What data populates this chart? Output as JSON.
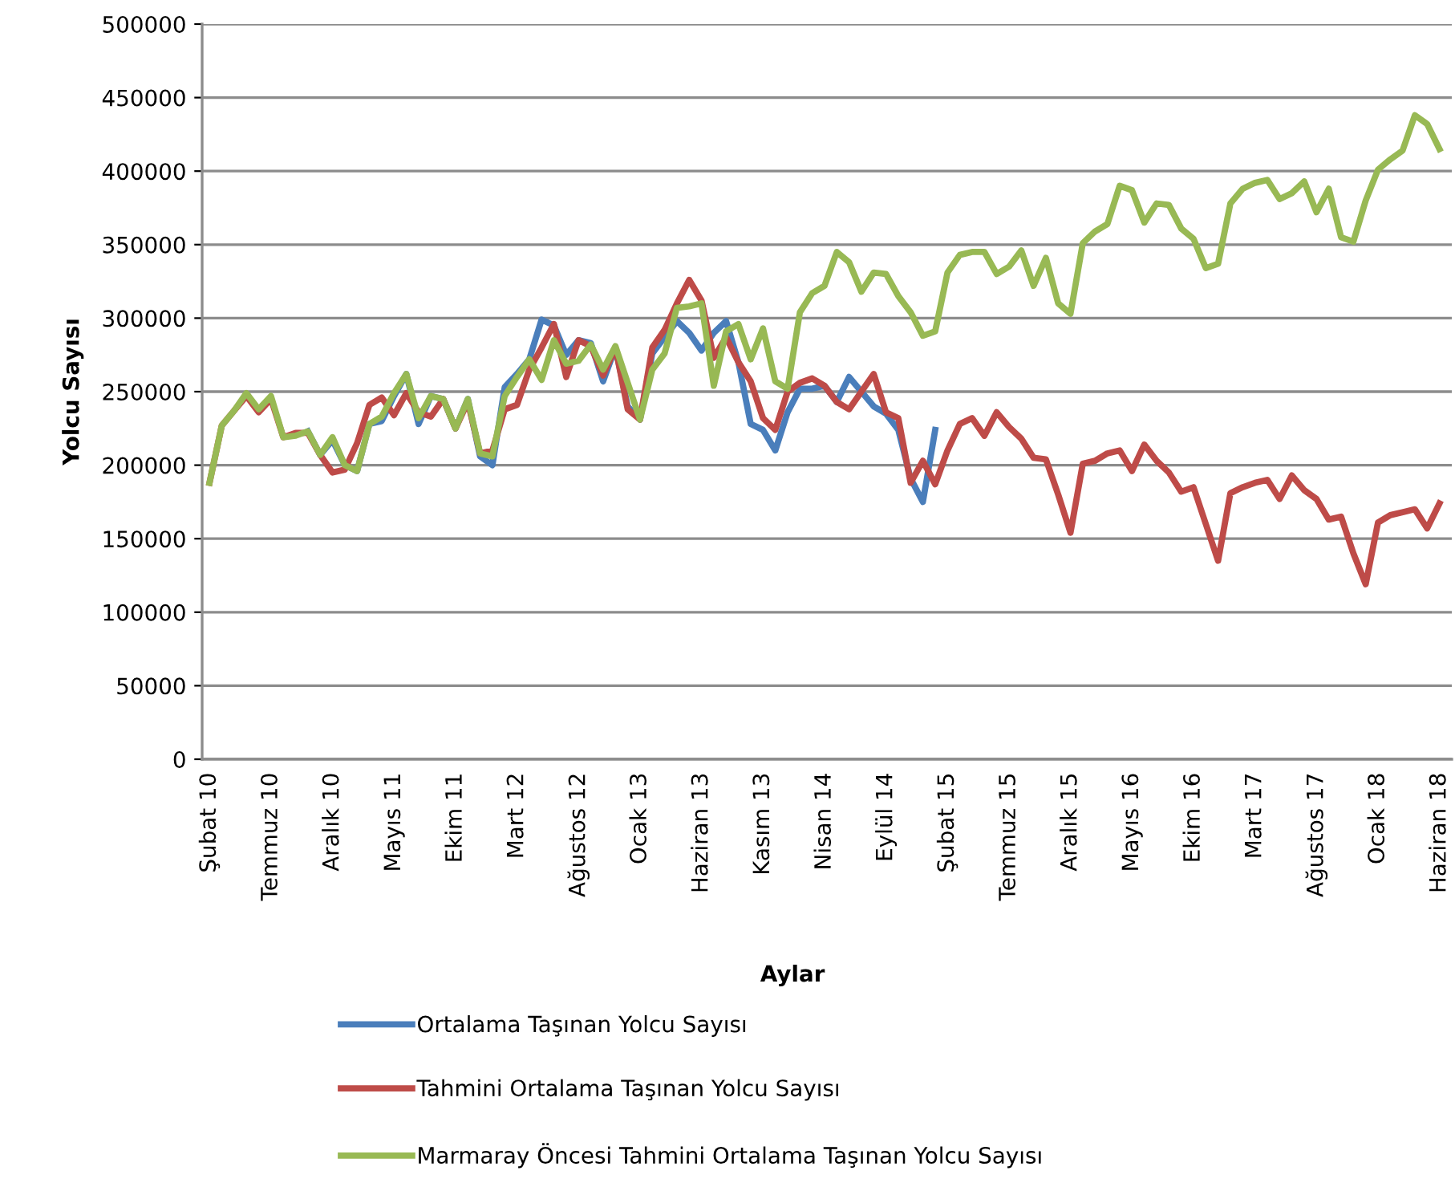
{
  "chart_data": {
    "type": "line",
    "xlabel": "Aylar",
    "ylabel": "Yolcu Sayısı",
    "categories": [
      "Şubat 10",
      null,
      null,
      null,
      null,
      "Temmuz 10",
      null,
      null,
      null,
      null,
      "Aralık 10",
      null,
      null,
      null,
      null,
      "Mayıs 11",
      null,
      null,
      null,
      null,
      "Ekim 11",
      null,
      null,
      null,
      null,
      "Mart 12",
      null,
      null,
      null,
      null,
      "Ağustos 12",
      null,
      null,
      null,
      null,
      "Ocak 13",
      null,
      null,
      null,
      null,
      "Haziran 13",
      null,
      null,
      null,
      null,
      "Kasım 13",
      null,
      null,
      null,
      null,
      "Nisan 14",
      null,
      null,
      null,
      null,
      "Eylül 14",
      null,
      null,
      null,
      null,
      "Şubat 15",
      null,
      null,
      null,
      null,
      "Temmuz 15",
      null,
      null,
      null,
      null,
      "Aralık 15",
      null,
      null,
      null,
      null,
      "Mayıs 16",
      null,
      null,
      null,
      null,
      "Ekim 16",
      null,
      null,
      null,
      null,
      "Mart 17",
      null,
      null,
      null,
      null,
      "Ağustos 17",
      null,
      null,
      null,
      null,
      "Ocak 18",
      null,
      null,
      null,
      null,
      "Haziran 18"
    ],
    "series": [
      {
        "name": "Ortalama Taşınan Yolcu Sayısı",
        "color": "#4a7ebb",
        "values": [
          null,
          null,
          null,
          null,
          null,
          null,
          null,
          null,
          223000,
          207000,
          217000,
          200000,
          196000,
          228000,
          230000,
          247000,
          262000,
          228000,
          247000,
          245000,
          225000,
          245000,
          206000,
          200000,
          253000,
          262000,
          272000,
          299000,
          295000,
          275000,
          285000,
          283000,
          257000,
          280000,
          240000,
          231000,
          276000,
          287000,
          298000,
          290000,
          278000,
          290000,
          298000,
          270000,
          228000,
          224000,
          210000,
          236000,
          252000,
          252000,
          254000,
          243000,
          260000,
          250000,
          240000,
          235000,
          224000,
          191000,
          175000,
          224000,
          null,
          null,
          null,
          null,
          null,
          null,
          null,
          null,
          null,
          null,
          null,
          null,
          null,
          null,
          null,
          null,
          null,
          null,
          null,
          null,
          null,
          null,
          null,
          null,
          null,
          null,
          null,
          null,
          null,
          null,
          null,
          null,
          null,
          null,
          null,
          null,
          null,
          null,
          null,
          null,
          null
        ]
      },
      {
        "name": "Tahmini Ortalama Taşınan Yolcu Sayısı",
        "color": "#be4b48",
        "values": [
          188000,
          227000,
          237000,
          247000,
          236000,
          245000,
          219000,
          222000,
          222000,
          207000,
          195000,
          197000,
          215000,
          241000,
          246000,
          234000,
          249000,
          236000,
          233000,
          245000,
          225000,
          243000,
          208000,
          210000,
          238000,
          241000,
          265000,
          280000,
          296000,
          260000,
          285000,
          281000,
          261000,
          280000,
          238000,
          231000,
          280000,
          292000,
          310000,
          326000,
          312000,
          273000,
          287000,
          270000,
          257000,
          232000,
          224000,
          250000,
          256000,
          259000,
          254000,
          243000,
          238000,
          250000,
          262000,
          236000,
          232000,
          188000,
          203000,
          187000,
          210000,
          228000,
          232000,
          220000,
          236000,
          226000,
          218000,
          205000,
          204000,
          180000,
          154000,
          201000,
          203000,
          208000,
          210000,
          196000,
          214000,
          203000,
          195000,
          182000,
          185000,
          160000,
          135000,
          181000,
          185000,
          188000,
          190000,
          177000,
          193000,
          183000,
          177000,
          163000,
          165000,
          140000,
          119000,
          161000,
          166000,
          168000,
          170000,
          157000,
          174000
        ]
      },
      {
        "name": "Marmaray Öncesi Tahmini Ortalama Taşınan Yolcu Sayısı",
        "color": "#98b954",
        "values": [
          188000,
          227000,
          237000,
          249000,
          238000,
          247000,
          219000,
          220000,
          223000,
          207000,
          219000,
          200000,
          196000,
          228000,
          233000,
          249000,
          262000,
          232000,
          247000,
          245000,
          225000,
          245000,
          208000,
          206000,
          247000,
          260000,
          272000,
          258000,
          285000,
          269000,
          271000,
          282000,
          265000,
          281000,
          256000,
          231000,
          265000,
          276000,
          307000,
          308000,
          310000,
          254000,
          291000,
          296000,
          272000,
          293000,
          257000,
          252000,
          304000,
          317000,
          322000,
          345000,
          338000,
          318000,
          331000,
          330000,
          315000,
          304000,
          288000,
          291000,
          331000,
          343000,
          345000,
          345000,
          330000,
          335000,
          346000,
          322000,
          341000,
          310000,
          303000,
          351000,
          359000,
          364000,
          390000,
          387000,
          365000,
          378000,
          377000,
          361000,
          354000,
          334000,
          337000,
          378000,
          388000,
          392000,
          394000,
          381000,
          385000,
          393000,
          372000,
          388000,
          355000,
          352000,
          380000,
          401000,
          408000,
          414000,
          438000,
          432000,
          415000
        ]
      }
    ],
    "ylim": [
      0,
      500000
    ],
    "yticks": [
      0,
      50000,
      100000,
      150000,
      200000,
      250000,
      300000,
      350000,
      400000,
      450000,
      500000
    ],
    "grid": "y",
    "legend": "bottom",
    "marker": "none",
    "line_style": "solid"
  }
}
